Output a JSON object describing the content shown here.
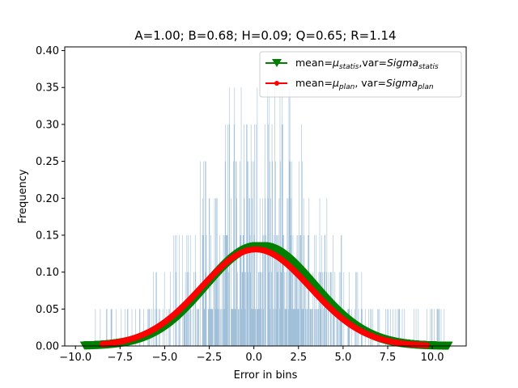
{
  "chart_data": {
    "type": "bar",
    "title": "A=1.00; B=0.68; H=0.09; Q=0.65; R=1.14",
    "xlabel": "Error in bins",
    "ylabel": "Frequency",
    "xlim": [
      -10.6,
      11.9
    ],
    "ylim": [
      0,
      0.405
    ],
    "xticks": [
      -10.0,
      -7.5,
      -5.0,
      -2.5,
      0.0,
      2.5,
      5.0,
      7.5,
      10.0
    ],
    "xtick_labels": [
      "−10.0",
      "−7.5",
      "−5.0",
      "−2.5",
      "0.0",
      "2.5",
      "5.0",
      "7.5",
      "10.0"
    ],
    "yticks": [
      0.0,
      0.05,
      0.1,
      0.15,
      0.2,
      0.25,
      0.3,
      0.35,
      0.4
    ],
    "ytick_labels": [
      "0.00",
      "0.05",
      "0.10",
      "0.15",
      "0.20",
      "0.25",
      "0.30",
      "0.35",
      "0.40"
    ],
    "grid": false,
    "legend_position": "top-right",
    "histogram": {
      "color": "#4682b4",
      "bin_width": 0.025,
      "x_range": [
        -9.4,
        10.8
      ],
      "level_values": [
        0.05,
        0.1,
        0.15,
        0.2,
        0.25,
        0.3,
        0.35
      ],
      "note_levels": "bar heights are multiples of about 0.05"
    },
    "series": [
      {
        "name_parts": [
          "mean=",
          "μ",
          "statis",
          ",var=",
          "Sigma",
          "statis"
        ],
        "color": "#008000",
        "marker": "triangle-down",
        "mean": 0.35,
        "std": 2.95,
        "x_range": [
          -9.5,
          10.9
        ]
      },
      {
        "name_parts": [
          "mean=",
          "μ",
          "plan",
          ", var=",
          "Sigma",
          "plan"
        ],
        "color": "#ff0000",
        "marker": "circle",
        "mean": 0.1,
        "std": 3.05,
        "x_range": [
          -8.5,
          9.7
        ]
      }
    ]
  }
}
